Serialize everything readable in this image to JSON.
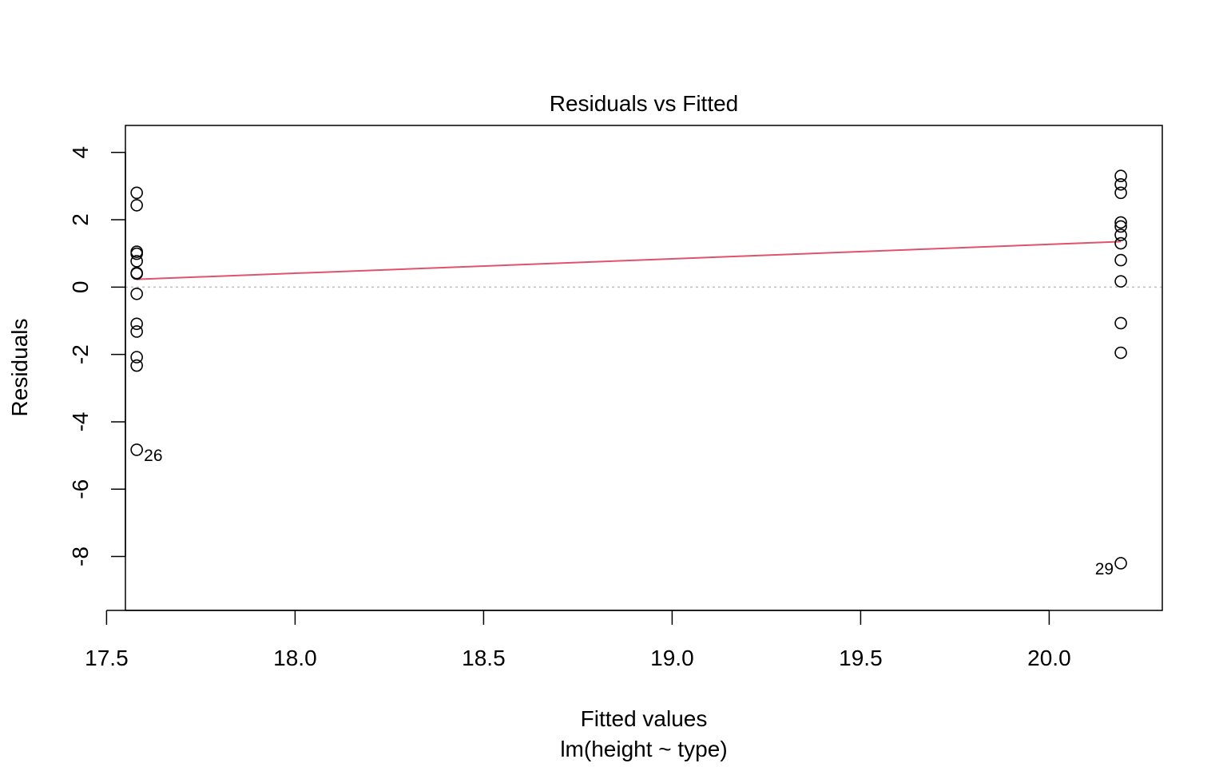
{
  "chart_data": {
    "type": "scatter",
    "title": "Residuals vs Fitted",
    "xlabel": "Fitted values",
    "sublabel": "lm(height ~ type)",
    "ylabel": "Residuals",
    "xlim": [
      17.55,
      20.3
    ],
    "ylim": [
      -9.6,
      4.8
    ],
    "xticks": [
      17.5,
      18.0,
      18.5,
      19.0,
      19.5,
      20.0
    ],
    "xtick_labels": [
      "17.5",
      "18.0",
      "18.5",
      "19.0",
      "19.5",
      "20.0"
    ],
    "yticks": [
      4,
      2,
      0,
      -2,
      -4,
      -6,
      -8
    ],
    "ytick_labels": [
      "4",
      "2",
      "0",
      "-2",
      "-4",
      "-6",
      "-8"
    ],
    "grid": false,
    "reference_line": {
      "y": 0,
      "color": "#bebebe",
      "style": "dotted"
    },
    "points": [
      {
        "x": 17.58,
        "y": 2.8
      },
      {
        "x": 17.58,
        "y": 2.43
      },
      {
        "x": 17.58,
        "y": 1.05
      },
      {
        "x": 17.58,
        "y": 0.99
      },
      {
        "x": 17.58,
        "y": 0.77
      },
      {
        "x": 17.58,
        "y": 0.42
      },
      {
        "x": 17.58,
        "y": 0.4
      },
      {
        "x": 17.58,
        "y": -0.2
      },
      {
        "x": 17.58,
        "y": -1.09
      },
      {
        "x": 17.58,
        "y": -1.32
      },
      {
        "x": 17.58,
        "y": -2.08
      },
      {
        "x": 17.58,
        "y": -2.33
      },
      {
        "x": 17.58,
        "y": -4.83,
        "label": "26"
      },
      {
        "x": 20.19,
        "y": 3.3
      },
      {
        "x": 20.19,
        "y": 3.05
      },
      {
        "x": 20.19,
        "y": 2.8
      },
      {
        "x": 20.19,
        "y": 1.92
      },
      {
        "x": 20.19,
        "y": 1.8
      },
      {
        "x": 20.19,
        "y": 1.55
      },
      {
        "x": 20.19,
        "y": 1.3
      },
      {
        "x": 20.19,
        "y": 0.8
      },
      {
        "x": 20.19,
        "y": 0.17
      },
      {
        "x": 20.19,
        "y": -1.07
      },
      {
        "x": 20.19,
        "y": -1.95
      },
      {
        "x": 20.19,
        "y": -8.2,
        "label": "29"
      }
    ],
    "smooth_line": {
      "color": "#DF536B",
      "points": [
        {
          "x": 17.58,
          "y": 0.23
        },
        {
          "x": 20.19,
          "y": 1.35
        }
      ]
    }
  }
}
